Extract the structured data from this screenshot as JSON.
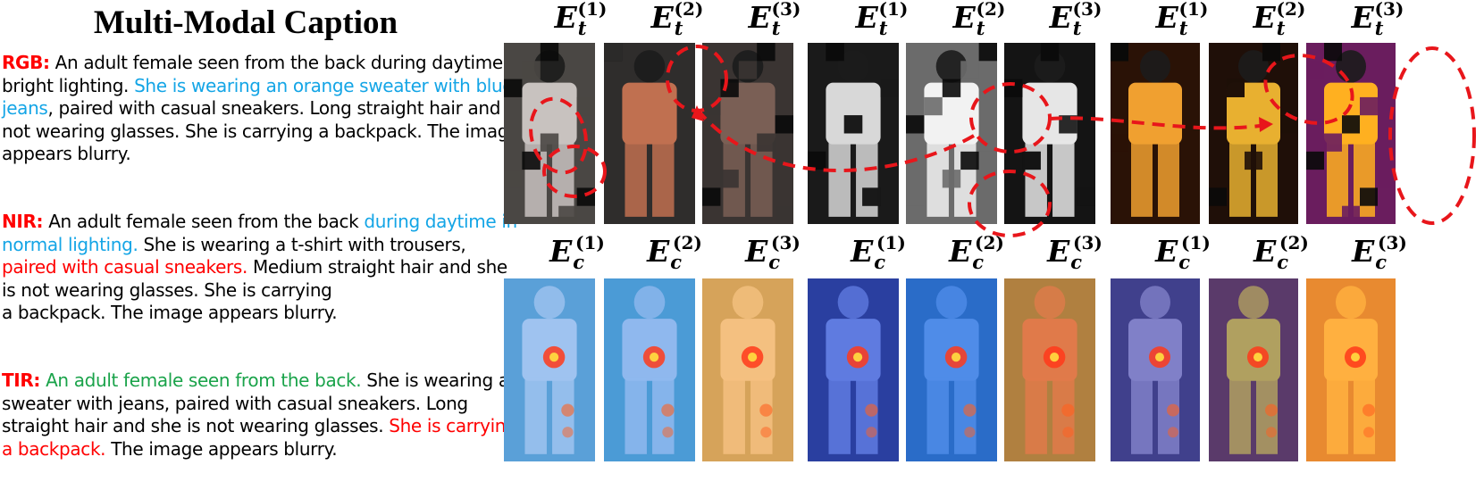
{
  "caption_panel": {
    "title": "Multi-Modal Caption",
    "rgb": {
      "label": "RGB:",
      "seg1": " An adult female seen from the back during daytime in bright lighting. ",
      "seg2_blue": "She is wearing an orange sweater with blue jeans",
      "seg3": ", paired with casual sneakers. Long straight hair and not wearing glasses. She is carrying a backpack. The image appears blurry."
    },
    "nir": {
      "label": "NIR:",
      "seg1": " An adult female seen from the back ",
      "seg2_blue": "during daytime in normal lighting.",
      "seg3": " She is wearing a t-shirt with trousers, ",
      "seg4_red": "paired with casual sneakers.",
      "seg5": " Medium straight hair and she is not wearing glasses. She is carrying",
      "seg6": "a backpack. The image appears blurry."
    },
    "tir": {
      "label": "TIR:",
      "seg1_green": " An adult female seen from the back.",
      "seg2": " She is wearing a sweater with jeans, paired with casual sneakers. Long straight hair and she is not wearing glasses. ",
      "seg3_red": "She is carrying",
      "seg4_red": "a backpack.",
      "seg5": " The image appears blurry."
    }
  },
  "grid": {
    "top_symbol": "E",
    "top_subscript": "t",
    "bottom_symbol": "E",
    "bottom_subscript": "c",
    "stage_labels": [
      "(1)",
      "(2)",
      "(3)",
      "(1)",
      "(2)",
      "(3)",
      "(1)",
      "(2)",
      "(3)"
    ],
    "modalities": [
      "RGB",
      "NIR",
      "TIR"
    ]
  },
  "colors": {
    "highlight_blue": "#14a5e6",
    "highlight_red": "#ff0000",
    "highlight_green": "#1aa34a",
    "annotation_dash": "#e8161b"
  }
}
